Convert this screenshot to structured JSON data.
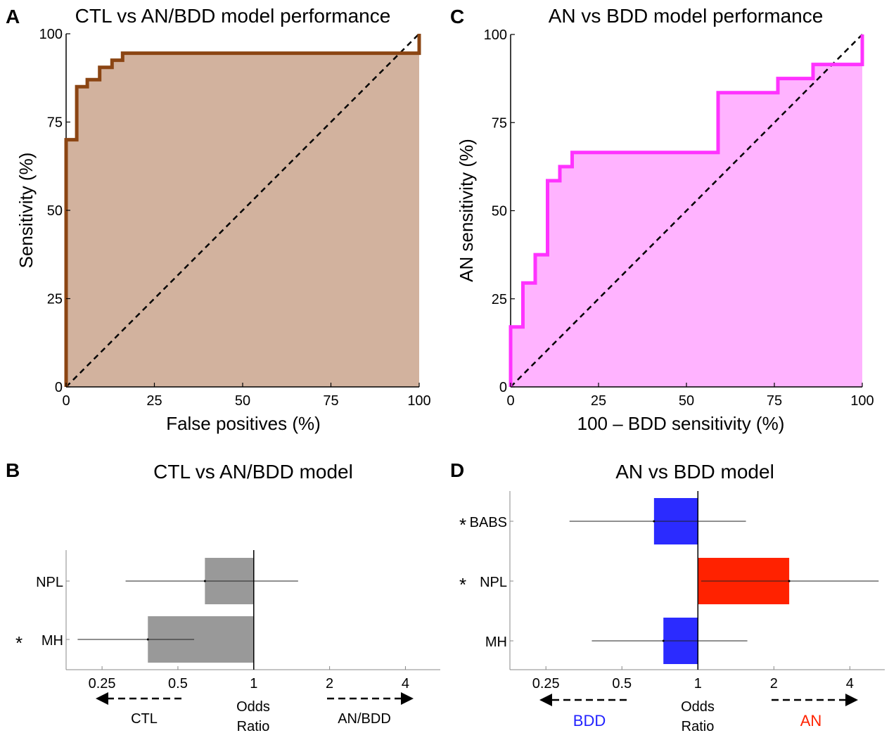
{
  "colors": {
    "roc_ctl_line": "#8b4513",
    "roc_ctl_fill": "#d2b29e",
    "roc_an_line": "#ff33ff",
    "roc_an_fill": "#ffb3ff",
    "bar_gray": "#999999",
    "bar_blue": "#2b2bff",
    "bar_red": "#ff2200",
    "bdd_text": "#2222ff",
    "an_text": "#ff2200",
    "star": "#888888"
  },
  "chart_data": [
    {
      "panel": "A",
      "type": "area",
      "title": "CTL vs AN/BDD model performance",
      "xlabel": "False positives (%)",
      "ylabel": "Sensitivity (%)",
      "xlim": [
        0,
        100
      ],
      "ylim": [
        0,
        100
      ],
      "xticks": [
        0,
        25,
        50,
        75,
        100
      ],
      "yticks": [
        0,
        25,
        50,
        75,
        100
      ],
      "diagonal_reference": true,
      "roc": {
        "x": [
          0,
          0,
          3,
          3,
          6,
          6,
          9.5,
          9.5,
          13,
          13,
          16,
          16,
          100,
          100
        ],
        "y": [
          0,
          70,
          70,
          85,
          85,
          87,
          87,
          90.5,
          90.5,
          92.5,
          92.5,
          94.5,
          94.5,
          100
        ]
      }
    },
    {
      "panel": "C",
      "type": "area",
      "title": "AN vs BDD model performance",
      "xlabel": "100 – BDD sensitivity (%)",
      "ylabel": "AN sensitivity (%)",
      "xlim": [
        0,
        100
      ],
      "ylim": [
        0,
        100
      ],
      "xticks": [
        0,
        25,
        50,
        75,
        100
      ],
      "yticks": [
        0,
        25,
        50,
        75,
        100
      ],
      "diagonal_reference": true,
      "roc": {
        "x": [
          0,
          0,
          3.5,
          3.5,
          7,
          7,
          10.5,
          10.5,
          14,
          14,
          17.5,
          17.5,
          59,
          59,
          76,
          76,
          86,
          86,
          100,
          100
        ],
        "y": [
          0,
          17,
          17,
          29.5,
          29.5,
          37.5,
          37.5,
          58.5,
          58.5,
          62.5,
          62.5,
          66.5,
          66.5,
          83.5,
          83.5,
          87.5,
          87.5,
          91.5,
          91.5,
          100
        ]
      }
    },
    {
      "panel": "B",
      "type": "bar",
      "orientation": "horizontal",
      "scale": "log2",
      "title": "CTL vs AN/BDD model",
      "xlabel": "Odds Ratio",
      "xlim": [
        0.18,
        5.5
      ],
      "xticks": [
        0.25,
        0.5,
        1,
        2,
        4
      ],
      "xtick_labels": [
        "0.25",
        "0.5",
        "1",
        "2",
        "4"
      ],
      "baseline": 1,
      "categories": [
        "NPL",
        "MH"
      ],
      "values": [
        0.64,
        0.38
      ],
      "ci_low": [
        0.31,
        0.2
      ],
      "ci_high": [
        1.5,
        0.58
      ],
      "significant": [
        false,
        true
      ],
      "bar_colors": [
        "#999999",
        "#999999"
      ],
      "left_label": "CTL",
      "right_label": "AN/BDD"
    },
    {
      "panel": "D",
      "type": "bar",
      "orientation": "horizontal",
      "scale": "log2",
      "title": "AN vs BDD model",
      "xlabel": "Odds Ratio",
      "xlim": [
        0.18,
        5.5
      ],
      "xticks": [
        0.25,
        0.5,
        1,
        2,
        4
      ],
      "xtick_labels": [
        "0.25",
        "0.5",
        "1",
        "2",
        "4"
      ],
      "baseline": 1,
      "categories": [
        "BABS",
        "NPL",
        "MH"
      ],
      "values": [
        0.67,
        2.3,
        0.73
      ],
      "ci_low": [
        0.31,
        1.03,
        0.38
      ],
      "ci_high": [
        1.55,
        5.2,
        1.57
      ],
      "significant": [
        true,
        true,
        false
      ],
      "bar_colors": [
        "#2b2bff",
        "#ff2200",
        "#2b2bff"
      ],
      "left_label": "BDD",
      "right_label": "AN"
    }
  ],
  "panel_letters": [
    "A",
    "C",
    "B",
    "D"
  ],
  "star_glyph": "*"
}
